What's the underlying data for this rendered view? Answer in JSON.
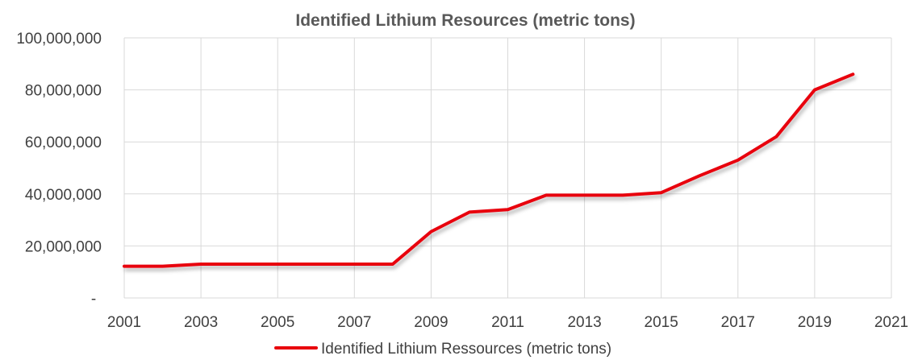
{
  "chart_data": {
    "type": "line",
    "title": "Identified Lithium Resources (metric tons)",
    "xlabel": "",
    "ylabel": "",
    "xlim": [
      2001,
      2021
    ],
    "ylim": [
      0,
      100000000
    ],
    "x_ticks": [
      "2001",
      "2003",
      "2005",
      "2007",
      "2009",
      "2011",
      "2013",
      "2015",
      "2017",
      "2019",
      "2021"
    ],
    "y_ticks": [
      {
        "value": 0,
        "label": "-"
      },
      {
        "value": 20000000,
        "label": "20,000,000"
      },
      {
        "value": 40000000,
        "label": "40,000,000"
      },
      {
        "value": 60000000,
        "label": "60,000,000"
      },
      {
        "value": 80000000,
        "label": "80,000,000"
      },
      {
        "value": 100000000,
        "label": "100,000,000"
      }
    ],
    "grid": true,
    "legend_position": "bottom",
    "series": [
      {
        "name": "Identified Lithium Ressources (metric tons)",
        "color": "#e8000b",
        "x": [
          2001,
          2002,
          2003,
          2004,
          2005,
          2006,
          2007,
          2008,
          2009,
          2010,
          2011,
          2012,
          2013,
          2014,
          2015,
          2016,
          2017,
          2018,
          2019,
          2020
        ],
        "values": [
          12200000,
          12200000,
          13000000,
          13000000,
          13000000,
          13000000,
          13000000,
          13000000,
          25500000,
          33000000,
          34000000,
          39500000,
          39500000,
          39500000,
          40500000,
          47000000,
          53000000,
          62000000,
          80000000,
          86000000
        ]
      }
    ]
  }
}
